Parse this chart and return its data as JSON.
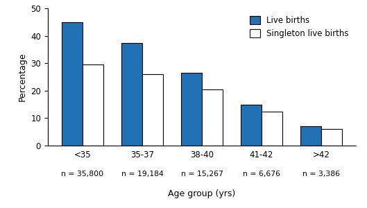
{
  "categories": [
    "<35",
    "35-37",
    "38-40",
    "41-42",
    ">42"
  ],
  "n_labels": [
    "n = 35,800",
    "n = 19,184",
    "n = 15,267",
    "n = 6,676",
    "n = 3,386"
  ],
  "live_births": [
    45.0,
    37.5,
    26.5,
    15.0,
    7.0
  ],
  "singleton_live_births": [
    29.5,
    26.0,
    20.5,
    12.5,
    6.0
  ],
  "bar_color_live": "#2171b5",
  "bar_color_singleton": "#ffffff",
  "bar_edgecolor": "#000000",
  "ylabel": "Percentage",
  "xlabel": "Age group (yrs)",
  "ylim": [
    0,
    50
  ],
  "yticks": [
    0,
    10,
    20,
    30,
    40,
    50
  ],
  "legend_live": "Live births",
  "legend_singleton": "Singleton live births",
  "bar_width": 0.35,
  "axis_fontsize": 9,
  "tick_fontsize": 8.5,
  "legend_fontsize": 8.5,
  "n_fontsize": 7.8,
  "figsize": [
    5.29,
    3.0
  ],
  "dpi": 100
}
